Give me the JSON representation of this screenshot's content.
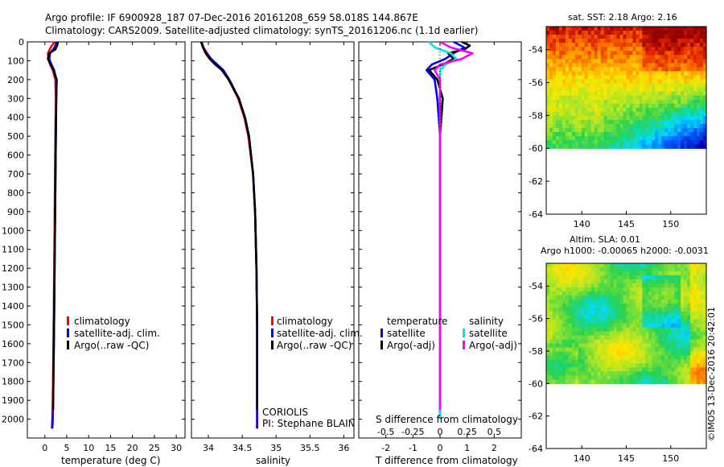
{
  "header": {
    "line1": "Argo profile: IF 6900928_187 07-Dec-2016 20161208_659 58.018S 144.867E",
    "line2": "Climatology: CARS2009. Satellite-adjusted climatology: synTS_20161206.nc (1.1d earlier)"
  },
  "colors": {
    "climatology": "#ff0000",
    "satellite": "#0000ff",
    "argo": "#000000",
    "satellite_salinity": "#00e5e5",
    "argo_salinity_adj": "#ff00ff"
  },
  "chart_data": [
    {
      "type": "line",
      "panel": "temperature",
      "xlabel": "temperature (deg C)",
      "ylabel": "",
      "xlim": [
        -4,
        32
      ],
      "ylim": [
        2100,
        0
      ],
      "x_ticks": [
        "0",
        "5",
        "10",
        "15",
        "20",
        "25",
        "30"
      ],
      "y_ticks": [
        "0",
        "100",
        "200",
        "300",
        "400",
        "500",
        "600",
        "700",
        "800",
        "900",
        "1000",
        "1100",
        "1200",
        "1300",
        "1400",
        "1500",
        "1600",
        "1700",
        "1800",
        "1900",
        "2000"
      ],
      "legend": [
        "climatology",
        "satellite-adj. clim.",
        "Argo(..raw -QC)"
      ],
      "legend_position": "lower-right",
      "series": [
        {
          "name": "climatology",
          "color": "#ff0000",
          "depth": [
            0,
            30,
            60,
            90,
            120,
            150,
            200,
            300,
            500,
            1000,
            1500,
            1900,
            2000,
            2050
          ],
          "values": [
            2.2,
            1.3,
            0.7,
            0.8,
            1.2,
            1.8,
            2.4,
            2.5,
            2.4,
            2.2,
            2.0,
            1.8,
            1.7,
            1.6
          ]
        },
        {
          "name": "satellite-adj. clim.",
          "color": "#0000ff",
          "depth": [
            0,
            30,
            60,
            90,
            120,
            150,
            200,
            300,
            500,
            1000,
            1500,
            1900,
            2000,
            2050
          ],
          "values": [
            2.7,
            2.2,
            1.2,
            1.0,
            1.5,
            2.1,
            2.6,
            2.6,
            2.5,
            2.3,
            2.1,
            1.9,
            1.8,
            1.7
          ]
        },
        {
          "name": "Argo(..raw -QC)",
          "color": "#000000",
          "depth": [
            0,
            20,
            40,
            60,
            90,
            120,
            150,
            200,
            300,
            500,
            1000,
            1500,
            1900,
            1950
          ],
          "values": [
            3.0,
            2.8,
            2.4,
            1.0,
            0.7,
            1.3,
            2.0,
            2.7,
            2.6,
            2.5,
            2.3,
            2.1,
            1.9,
            1.9
          ]
        }
      ]
    },
    {
      "type": "line",
      "panel": "salinity",
      "xlabel": "salinity",
      "ylabel": "",
      "xlim": [
        33.75,
        36.15
      ],
      "ylim": [
        2100,
        0
      ],
      "x_ticks": [
        "34",
        "34.5",
        "35",
        "35.5",
        "36"
      ],
      "legend": [
        "climatology",
        "satellite-adj. clim.",
        "Argo(..raw -QC)"
      ],
      "legend_position": "lower-right",
      "annotation": [
        "CORIOLIS",
        "PI: Stephane BLAIN"
      ],
      "series": [
        {
          "name": "climatology",
          "color": "#ff0000",
          "depth": [
            0,
            30,
            60,
            90,
            120,
            150,
            200,
            300,
            400,
            500,
            700,
            900,
            1200,
            1500,
            1900,
            2050
          ],
          "values": [
            33.9,
            33.93,
            33.98,
            34.04,
            34.12,
            34.2,
            34.3,
            34.44,
            34.53,
            34.59,
            34.66,
            34.69,
            34.71,
            34.72,
            34.72,
            34.72
          ]
        },
        {
          "name": "satellite-adj. clim.",
          "color": "#0000ff",
          "depth": [
            0,
            30,
            60,
            90,
            120,
            150,
            200,
            300,
            400,
            500,
            700,
            900,
            1200,
            1500,
            1900,
            2050
          ],
          "values": [
            33.89,
            33.92,
            33.97,
            34.04,
            34.13,
            34.22,
            34.31,
            34.45,
            34.54,
            34.6,
            34.66,
            34.69,
            34.71,
            34.72,
            34.72,
            34.72
          ]
        },
        {
          "name": "Argo(..raw -QC)",
          "color": "#000000",
          "depth": [
            0,
            30,
            60,
            90,
            120,
            150,
            200,
            300,
            400,
            500,
            700,
            900,
            1200,
            1500,
            1900,
            1950
          ],
          "values": [
            33.9,
            33.92,
            33.96,
            34.02,
            34.1,
            34.2,
            34.3,
            34.45,
            34.54,
            34.6,
            34.66,
            34.69,
            34.71,
            34.72,
            34.72,
            34.72
          ]
        }
      ]
    },
    {
      "type": "line",
      "panel": "difference",
      "xlabel": "T difference from climatology",
      "xlabel2": "S difference from climatology",
      "xlim": [
        -3,
        3
      ],
      "ylim": [
        2100,
        0
      ],
      "x_ticks": [
        "-2",
        "-1",
        "0",
        "1",
        "2"
      ],
      "x2_ticks": [
        "-0.5",
        "-0.25",
        "0",
        "0.25",
        "0.5"
      ],
      "legend": {
        "temperature_title": "temperature",
        "salinity_title": "salinity",
        "items": [
          "satellite",
          "Argo(-adj)",
          "satellite",
          "Argo(-adj)"
        ]
      },
      "series": [
        {
          "name": "temperature satellite",
          "color": "#0000ff",
          "depth": [
            0,
            30,
            60,
            90,
            120,
            150,
            200,
            300,
            500,
            1000,
            1500,
            2000
          ],
          "values": [
            0.5,
            0.9,
            0.5,
            0.2,
            -0.3,
            -0.5,
            -0.2,
            -0.1,
            0.0,
            0.0,
            0.0,
            0.0
          ]
        },
        {
          "name": "temperature Argo(-adj)",
          "color": "#000000",
          "depth": [
            0,
            20,
            40,
            60,
            90,
            120,
            150,
            200,
            300,
            500,
            1000,
            1500,
            1950
          ],
          "values": [
            0.8,
            1.1,
            0.9,
            0.3,
            0.5,
            0.1,
            -0.4,
            -0.1,
            0.1,
            0.0,
            0.0,
            0.0,
            0.0
          ]
        },
        {
          "name": "salinity satellite",
          "color": "#00e5e5",
          "depth": [
            0,
            30,
            60,
            90,
            120,
            150,
            200,
            500,
            1000,
            1500,
            2000
          ],
          "values": [
            -0.1,
            -0.05,
            0.1,
            0.15,
            0.05,
            0.0,
            0.0,
            0.0,
            0.0,
            0.0,
            0.0
          ]
        },
        {
          "name": "salinity Argo(-adj)",
          "color": "#ff00ff",
          "depth": [
            0,
            30,
            60,
            90,
            120,
            150,
            200,
            500,
            1000,
            1500,
            1950
          ],
          "values": [
            0.0,
            0.1,
            0.3,
            0.2,
            0.0,
            -0.05,
            0.0,
            0.0,
            0.0,
            0.0,
            0.0
          ]
        }
      ]
    },
    {
      "type": "heatmap",
      "panel": "sst_map",
      "title": "sat. SST: 2.18 Argo: 2.16",
      "x_ticks": [
        "140",
        "145",
        "150"
      ],
      "y_ticks": [
        "-54",
        "-56",
        "-58",
        "-60",
        "-62",
        "-64"
      ],
      "xlim": [
        136,
        154
      ],
      "ylim": [
        -64,
        -52.6
      ],
      "data_extent_lat": [
        -60,
        -52.6
      ]
    },
    {
      "type": "heatmap",
      "panel": "sla_map",
      "title": "Altim. SLA: 0.01",
      "subtitle": "Argo h1000: -0.00065 h2000: -0.0031",
      "x_ticks": [
        "140",
        "145",
        "150"
      ],
      "y_ticks": [
        "-54",
        "-56",
        "-58",
        "-60",
        "-62",
        "-64"
      ],
      "xlim": [
        136,
        154
      ],
      "ylim": [
        -64,
        -52.6
      ],
      "data_extent_lat": [
        -60,
        -52.6
      ]
    }
  ],
  "footer": {
    "credit": "©IMOS 13-Dec-2016 20:42:01"
  }
}
